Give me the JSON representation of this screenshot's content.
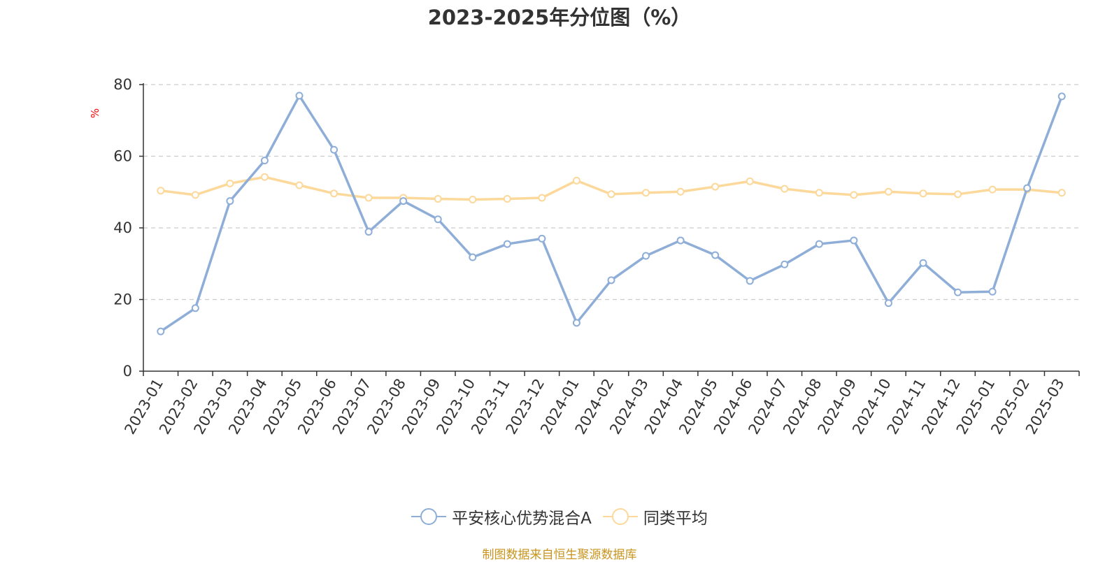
{
  "chart_data": {
    "type": "line",
    "title": "2023-2025年分位图（%）",
    "ylabel": "%",
    "ylim": [
      0,
      80
    ],
    "yticks": [
      0,
      20,
      40,
      60,
      80
    ],
    "grid": true,
    "legend_position": "bottom",
    "categories": [
      "2023-01",
      "2023-02",
      "2023-03",
      "2023-04",
      "2023-05",
      "2023-06",
      "2023-07",
      "2023-08",
      "2023-09",
      "2023-10",
      "2023-11",
      "2023-12",
      "2024-01",
      "2024-02",
      "2024-03",
      "2024-04",
      "2024-05",
      "2024-06",
      "2024-07",
      "2024-08",
      "2024-09",
      "2024-10",
      "2024-11",
      "2024-12",
      "2025-01",
      "2025-02",
      "2025-03"
    ],
    "series": [
      {
        "name": "平安核心优势混合A",
        "color": "#8eaed8",
        "values": [
          11.1,
          17.6,
          47.5,
          58.8,
          76.9,
          61.8,
          38.9,
          47.5,
          42.4,
          31.8,
          35.5,
          37.0,
          13.5,
          25.4,
          32.2,
          36.5,
          32.4,
          25.2,
          29.8,
          35.5,
          36.5,
          19.0,
          30.2,
          22.0,
          22.2,
          51.1,
          76.7
        ]
      },
      {
        "name": "同类平均",
        "color": "#fcd89a",
        "values": [
          50.4,
          49.2,
          52.4,
          54.2,
          51.9,
          49.6,
          48.4,
          48.4,
          48.1,
          47.9,
          48.1,
          48.4,
          53.2,
          49.4,
          49.8,
          50.1,
          51.5,
          53.0,
          50.9,
          49.8,
          49.2,
          50.1,
          49.6,
          49.4,
          50.7,
          50.7,
          49.8
        ]
      }
    ]
  },
  "source_note": "制图数据来自恒生聚源数据库"
}
